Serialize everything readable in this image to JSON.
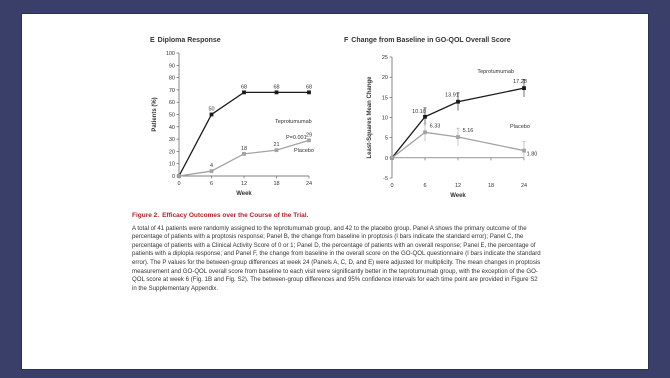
{
  "colors": {
    "background": "#3a3f6a",
    "frame": "#ffffff",
    "teprotumumab": "#1a1a1a",
    "placebo": "#a3a3a3",
    "caption_title": "#b32228"
  },
  "panels": {
    "e": {
      "letter": "E",
      "title": "Diploma Response"
    },
    "f": {
      "letter": "F",
      "title": "Change from Baseline in GO-QOL Overall Score"
    }
  },
  "chart_data": [
    {
      "type": "line",
      "title": "Diploma Response",
      "xlabel": "Week",
      "ylabel": "Patients (%)",
      "x": [
        0,
        6,
        12,
        18,
        24
      ],
      "xticks": [
        0,
        6,
        12,
        18,
        24
      ],
      "yticks": [
        0,
        10,
        20,
        30,
        40,
        50,
        60,
        70,
        80,
        90,
        100
      ],
      "ylim": [
        0,
        100
      ],
      "xlim": [
        0,
        24
      ],
      "series": [
        {
          "name": "Teprotumumab",
          "values": [
            0,
            50,
            68,
            68,
            68
          ],
          "labels": [
            "",
            "50",
            "68",
            "68",
            "68"
          ],
          "color": "#1a1a1a",
          "marker": "square"
        },
        {
          "name": "Placebo",
          "values": [
            0,
            4,
            18,
            21,
            29
          ],
          "labels": [
            "",
            "4",
            "18",
            "21",
            "29"
          ],
          "color": "#a3a3a3",
          "marker": "square"
        }
      ],
      "annotations": [
        "P=0.001"
      ],
      "legend": "inline"
    },
    {
      "type": "line",
      "title": "Change from Baseline in GO-QOL Overall Score",
      "xlabel": "Week",
      "ylabel": "Least-Squares Mean Change",
      "x": [
        0,
        6,
        12,
        24
      ],
      "xticks": [
        0,
        6,
        12,
        18,
        24
      ],
      "yticks": [
        -5,
        0,
        5,
        10,
        15,
        20,
        25
      ],
      "ylim": [
        -5,
        25
      ],
      "xlim": [
        0,
        24
      ],
      "series": [
        {
          "name": "Teprotumumab",
          "values": [
            0,
            10.18,
            13.91,
            17.28
          ],
          "labels": [
            "",
            "10.18",
            "13.91",
            "17.28"
          ],
          "color": "#1a1a1a",
          "marker": "square"
        },
        {
          "name": "Placebo",
          "values": [
            0,
            6.33,
            5.16,
            1.8
          ],
          "labels": [
            "",
            "6.33",
            "5.16",
            "1.80"
          ],
          "color": "#a3a3a3",
          "marker": "square"
        }
      ],
      "error_bars": true,
      "legend": "inline"
    }
  ],
  "caption": {
    "figure_label": "Figure 2.",
    "title": "Efficacy Outcomes over the Course of the Trial.",
    "body": "A total of 41 patients were randomly assigned to the teprotumumab group, and 42 to the placebo group. Panel A shows the primary outcome of the percentage of patients with a proptosis response; Panel B, the change from baseline in proptosis (I bars indicate the standard error); Panel C, the percentage of patients with a Clinical Activity Score of 0 or 1; Panel D, the percentage of patients with an overall response; Panel E, the percentage of patients with a diplopia response; and Panel F, the change from baseline in the overall score on the GO-QOL questionnaire (I bars indicate the standard error). The P values for the between-group differences at week 24 (Panels A, C, D, and E) were adjusted for multiplicity. The mean changes in proptosis measurement and GO-QOL overall score from baseline to each visit were significantly better in the teprotumumab group, with the exception of the GO-QOL score at week 6 (Fig. 1B and Fig. S2). The between-group differences and 95% confidence intervals for each time point are provided in Figure S2 in the Supplementary Appendix."
  }
}
